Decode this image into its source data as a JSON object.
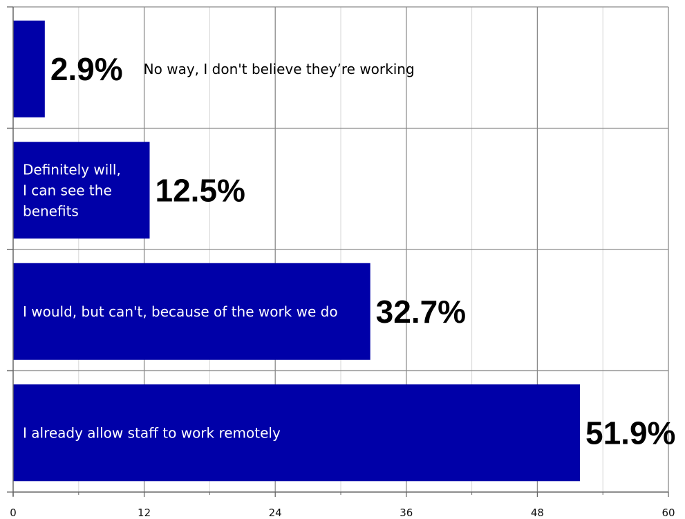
{
  "chart_data": {
    "type": "bar",
    "orientation": "horizontal",
    "categories": [
      "No way, I don't believe they’re working",
      "Definitely will,\nI can see the\nbenefits",
      "I would, but can't, because of the work we do",
      "I already allow staff to work remotely"
    ],
    "values": [
      2.9,
      12.5,
      32.7,
      51.9
    ],
    "value_labels": [
      "2.9%",
      "12.5%",
      "32.7%",
      "51.9%"
    ],
    "xlim": [
      0,
      60
    ],
    "xticks": [
      "0",
      "12",
      "24",
      "36",
      "48",
      "60"
    ],
    "grid": true,
    "title": "",
    "xlabel": "",
    "ylabel": "",
    "colors": {
      "bar": "#0000a8",
      "grid_major": "#8a8a8a",
      "grid_minor": "#d6d6d6",
      "axis": "#666666"
    }
  }
}
